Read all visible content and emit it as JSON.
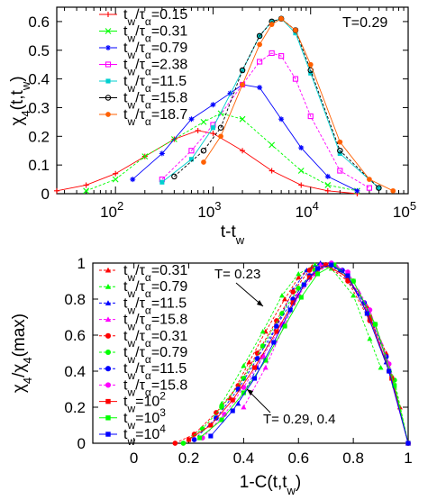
{
  "chart_data": [
    {
      "type": "line",
      "annotation": "T=0.29",
      "xlabel": "t-t_w",
      "ylabel": "χ_4(t,t_w)",
      "xscale": "log",
      "xlim": [
        25,
        100000
      ],
      "ylim": [
        0,
        0.65
      ],
      "xtick_exponents": [
        2,
        3,
        4,
        5
      ],
      "yticks": [
        "0",
        "0.1",
        "0.2",
        "0.3",
        "0.4",
        "0.5",
        "0.6"
      ],
      "legend_position": "top-left",
      "series": [
        {
          "name": "t_w/τ_α=0.15",
          "color": "#ff0000",
          "marker": "plus",
          "x": [
            25,
            50,
            100,
            200,
            400,
            700,
            1000,
            2000,
            4000,
            8000,
            15000,
            30000
          ],
          "y": [
            0.01,
            0.03,
            0.07,
            0.13,
            0.19,
            0.22,
            0.21,
            0.15,
            0.08,
            0.03,
            0.01,
            0.0
          ]
        },
        {
          "name": "t_w/τ_α=0.31",
          "color": "#00ff00",
          "marker": "cross",
          "x": [
            50,
            100,
            200,
            400,
            800,
            1200,
            2000,
            4000,
            8000,
            15000,
            30000
          ],
          "y": [
            0.01,
            0.05,
            0.13,
            0.19,
            0.25,
            0.28,
            0.26,
            0.17,
            0.08,
            0.03,
            0.01
          ]
        },
        {
          "name": "t_w/τ_α=0.79",
          "color": "#0000ff",
          "marker": "star",
          "x": [
            150,
            300,
            600,
            1000,
            1500,
            2000,
            3000,
            5000,
            8000,
            15000,
            30000
          ],
          "y": [
            0.05,
            0.14,
            0.26,
            0.31,
            0.35,
            0.38,
            0.37,
            0.26,
            0.16,
            0.06,
            0.01
          ]
        },
        {
          "name": "t_w/τ_α=2.38",
          "color": "#ff00ff",
          "marker": "square",
          "x": [
            300,
            600,
            1000,
            2000,
            3000,
            4000,
            5000,
            7000,
            10000,
            20000,
            40000
          ],
          "y": [
            0.05,
            0.15,
            0.24,
            0.38,
            0.46,
            0.49,
            0.48,
            0.4,
            0.27,
            0.08,
            0.02
          ]
        },
        {
          "name": "t_w/τ_α=11.5",
          "color": "#00cfcf",
          "marker": "filled-square",
          "x": [
            300,
            600,
            1000,
            2000,
            3000,
            4000,
            5000,
            7000,
            10000,
            20000,
            50000
          ],
          "y": [
            0.04,
            0.12,
            0.23,
            0.43,
            0.55,
            0.6,
            0.61,
            0.56,
            0.42,
            0.14,
            0.02
          ]
        },
        {
          "name": "t_w/τ_α=15.8",
          "color": "#000000",
          "marker": "circle",
          "x": [
            400,
            800,
            1200,
            2000,
            3000,
            4000,
            5000,
            7000,
            10000,
            20000,
            50000
          ],
          "y": [
            0.06,
            0.15,
            0.23,
            0.43,
            0.55,
            0.6,
            0.61,
            0.57,
            0.43,
            0.15,
            0.02
          ]
        },
        {
          "name": "t_w/τ_α=18.7",
          "color": "#ff6000",
          "marker": "filled-circle",
          "x": [
            800,
            1200,
            2000,
            3000,
            4000,
            5000,
            7000,
            10000,
            20000,
            40000,
            70000
          ],
          "y": [
            0.11,
            0.2,
            0.38,
            0.52,
            0.59,
            0.61,
            0.57,
            0.45,
            0.18,
            0.05,
            0.01
          ]
        }
      ]
    },
    {
      "type": "line",
      "xlabel": "1-C(t,t_w)",
      "ylabel": "χ_4/χ_4(max)",
      "xlim": [
        -0.15,
        1.0
      ],
      "ylim": [
        0,
        1.0
      ],
      "xticks": [
        "0",
        "0.2",
        "0.4",
        "0.6",
        "0.8",
        "1"
      ],
      "yticks": [
        "0",
        "0.2",
        "0.4",
        "0.6",
        "0.8",
        "1"
      ],
      "legend_position": "top-left",
      "annotations": [
        "T= 0.23",
        "T= 0.29, 0.4"
      ],
      "series": [
        {
          "name": "t_w/τ_α=0.31",
          "color": "#ff0000",
          "marker": "filled-triangle",
          "group": "T= 0.23",
          "x": [
            0.35,
            0.42,
            0.48,
            0.55,
            0.6,
            0.65,
            0.7,
            0.78,
            0.85,
            0.92,
            0.97,
            1.0
          ],
          "y": [
            0.25,
            0.45,
            0.62,
            0.8,
            0.92,
            0.98,
            0.99,
            0.92,
            0.76,
            0.5,
            0.2,
            0.0
          ]
        },
        {
          "name": "t_w/τ_α=0.79",
          "color": "#00ff00",
          "marker": "filled-triangle",
          "group": "T= 0.23",
          "x": [
            0.32,
            0.4,
            0.47,
            0.54,
            0.6,
            0.66,
            0.72,
            0.8,
            0.86,
            0.9
          ],
          "y": [
            0.22,
            0.43,
            0.62,
            0.82,
            0.94,
            0.99,
            0.97,
            0.82,
            0.58,
            0.42
          ]
        },
        {
          "name": "t_w/τ_α=11.5",
          "color": "#0000ff",
          "marker": "filled-triangle",
          "group": "T= 0.23",
          "x": [
            0.38,
            0.45,
            0.52,
            0.58,
            0.63,
            0.68,
            0.75,
            0.84,
            0.92,
            1.0
          ],
          "y": [
            0.22,
            0.42,
            0.65,
            0.85,
            0.96,
            1.0,
            0.96,
            0.78,
            0.45,
            0.0
          ]
        },
        {
          "name": "t_w/τ_α=15.8",
          "color": "#ff00ff",
          "marker": "filled-triangle",
          "group": "T= 0.23",
          "x": [
            0.4,
            0.48,
            0.55,
            0.62,
            0.68,
            0.74,
            0.82,
            0.9,
            1.0
          ],
          "y": [
            0.2,
            0.42,
            0.66,
            0.88,
            0.99,
            0.98,
            0.84,
            0.56,
            0.0
          ]
        },
        {
          "name": "t_w/τ_α=0.31",
          "color": "#ff0000",
          "marker": "filled-circle",
          "group": "T= 0.29, 0.4",
          "x": [
            0.15,
            0.22,
            0.3,
            0.38,
            0.45,
            0.52,
            0.58,
            0.64,
            0.7,
            0.78,
            0.86,
            0.93,
            1.0
          ],
          "y": [
            0.0,
            0.05,
            0.17,
            0.32,
            0.5,
            0.68,
            0.84,
            0.96,
            0.99,
            0.9,
            0.68,
            0.4,
            0.0
          ]
        },
        {
          "name": "t_w/τ_α=0.79",
          "color": "#00ff00",
          "marker": "filled-circle",
          "group": "T= 0.29, 0.4",
          "x": [
            0.18,
            0.25,
            0.32,
            0.4,
            0.47,
            0.54,
            0.6,
            0.66,
            0.72,
            0.8,
            0.88,
            0.95,
            1.0
          ],
          "y": [
            0.0,
            0.08,
            0.2,
            0.36,
            0.54,
            0.72,
            0.86,
            0.96,
            0.99,
            0.9,
            0.66,
            0.35,
            0.0
          ]
        },
        {
          "name": "t_w/τ_α=11.5",
          "color": "#0000ff",
          "marker": "filled-circle",
          "group": "T= 0.29, 0.4",
          "x": [
            0.22,
            0.3,
            0.38,
            0.45,
            0.52,
            0.58,
            0.64,
            0.7,
            0.76,
            0.84,
            0.92,
            1.0
          ],
          "y": [
            0.02,
            0.14,
            0.3,
            0.47,
            0.65,
            0.8,
            0.93,
            0.99,
            0.96,
            0.78,
            0.48,
            0.0
          ]
        },
        {
          "name": "t_w/τ_α=15.8",
          "color": "#ff00ff",
          "marker": "filled-circle",
          "group": "T= 0.29, 0.4",
          "x": [
            0.25,
            0.33,
            0.4,
            0.47,
            0.54,
            0.6,
            0.66,
            0.72,
            0.78,
            0.86,
            0.93,
            1.0
          ],
          "y": [
            0.03,
            0.16,
            0.31,
            0.48,
            0.66,
            0.82,
            0.94,
            1.0,
            0.95,
            0.74,
            0.44,
            0.0
          ]
        },
        {
          "name": "t_w=10^2",
          "color": "#ff0000",
          "marker": "filled-square",
          "group": "T= 0.29, 0.4",
          "x": [
            0.2,
            0.28,
            0.36,
            0.44,
            0.52,
            0.58,
            0.64,
            0.7,
            0.78,
            0.86,
            0.94,
            1.0
          ],
          "y": [
            0.02,
            0.1,
            0.24,
            0.42,
            0.62,
            0.78,
            0.92,
            0.99,
            0.92,
            0.7,
            0.36,
            0.0
          ]
        },
        {
          "name": "t_w=10^3",
          "color": "#00ff00",
          "marker": "filled-square",
          "group": "T= 0.29, 0.4",
          "x": [
            0.24,
            0.32,
            0.4,
            0.48,
            0.55,
            0.61,
            0.67,
            0.73,
            0.8,
            0.88,
            0.95,
            1.0
          ],
          "y": [
            0.03,
            0.13,
            0.28,
            0.46,
            0.65,
            0.81,
            0.94,
            0.99,
            0.9,
            0.66,
            0.32,
            0.0
          ]
        },
        {
          "name": "t_w=10^4",
          "color": "#0000ff",
          "marker": "filled-square",
          "group": "T= 0.29, 0.4",
          "x": [
            0.28,
            0.36,
            0.44,
            0.51,
            0.57,
            0.62,
            0.67,
            0.72,
            0.78,
            0.85,
            0.93,
            1.0
          ],
          "y": [
            0.04,
            0.18,
            0.36,
            0.56,
            0.74,
            0.88,
            0.97,
            0.99,
            0.93,
            0.72,
            0.4,
            0.0
          ]
        }
      ]
    }
  ]
}
